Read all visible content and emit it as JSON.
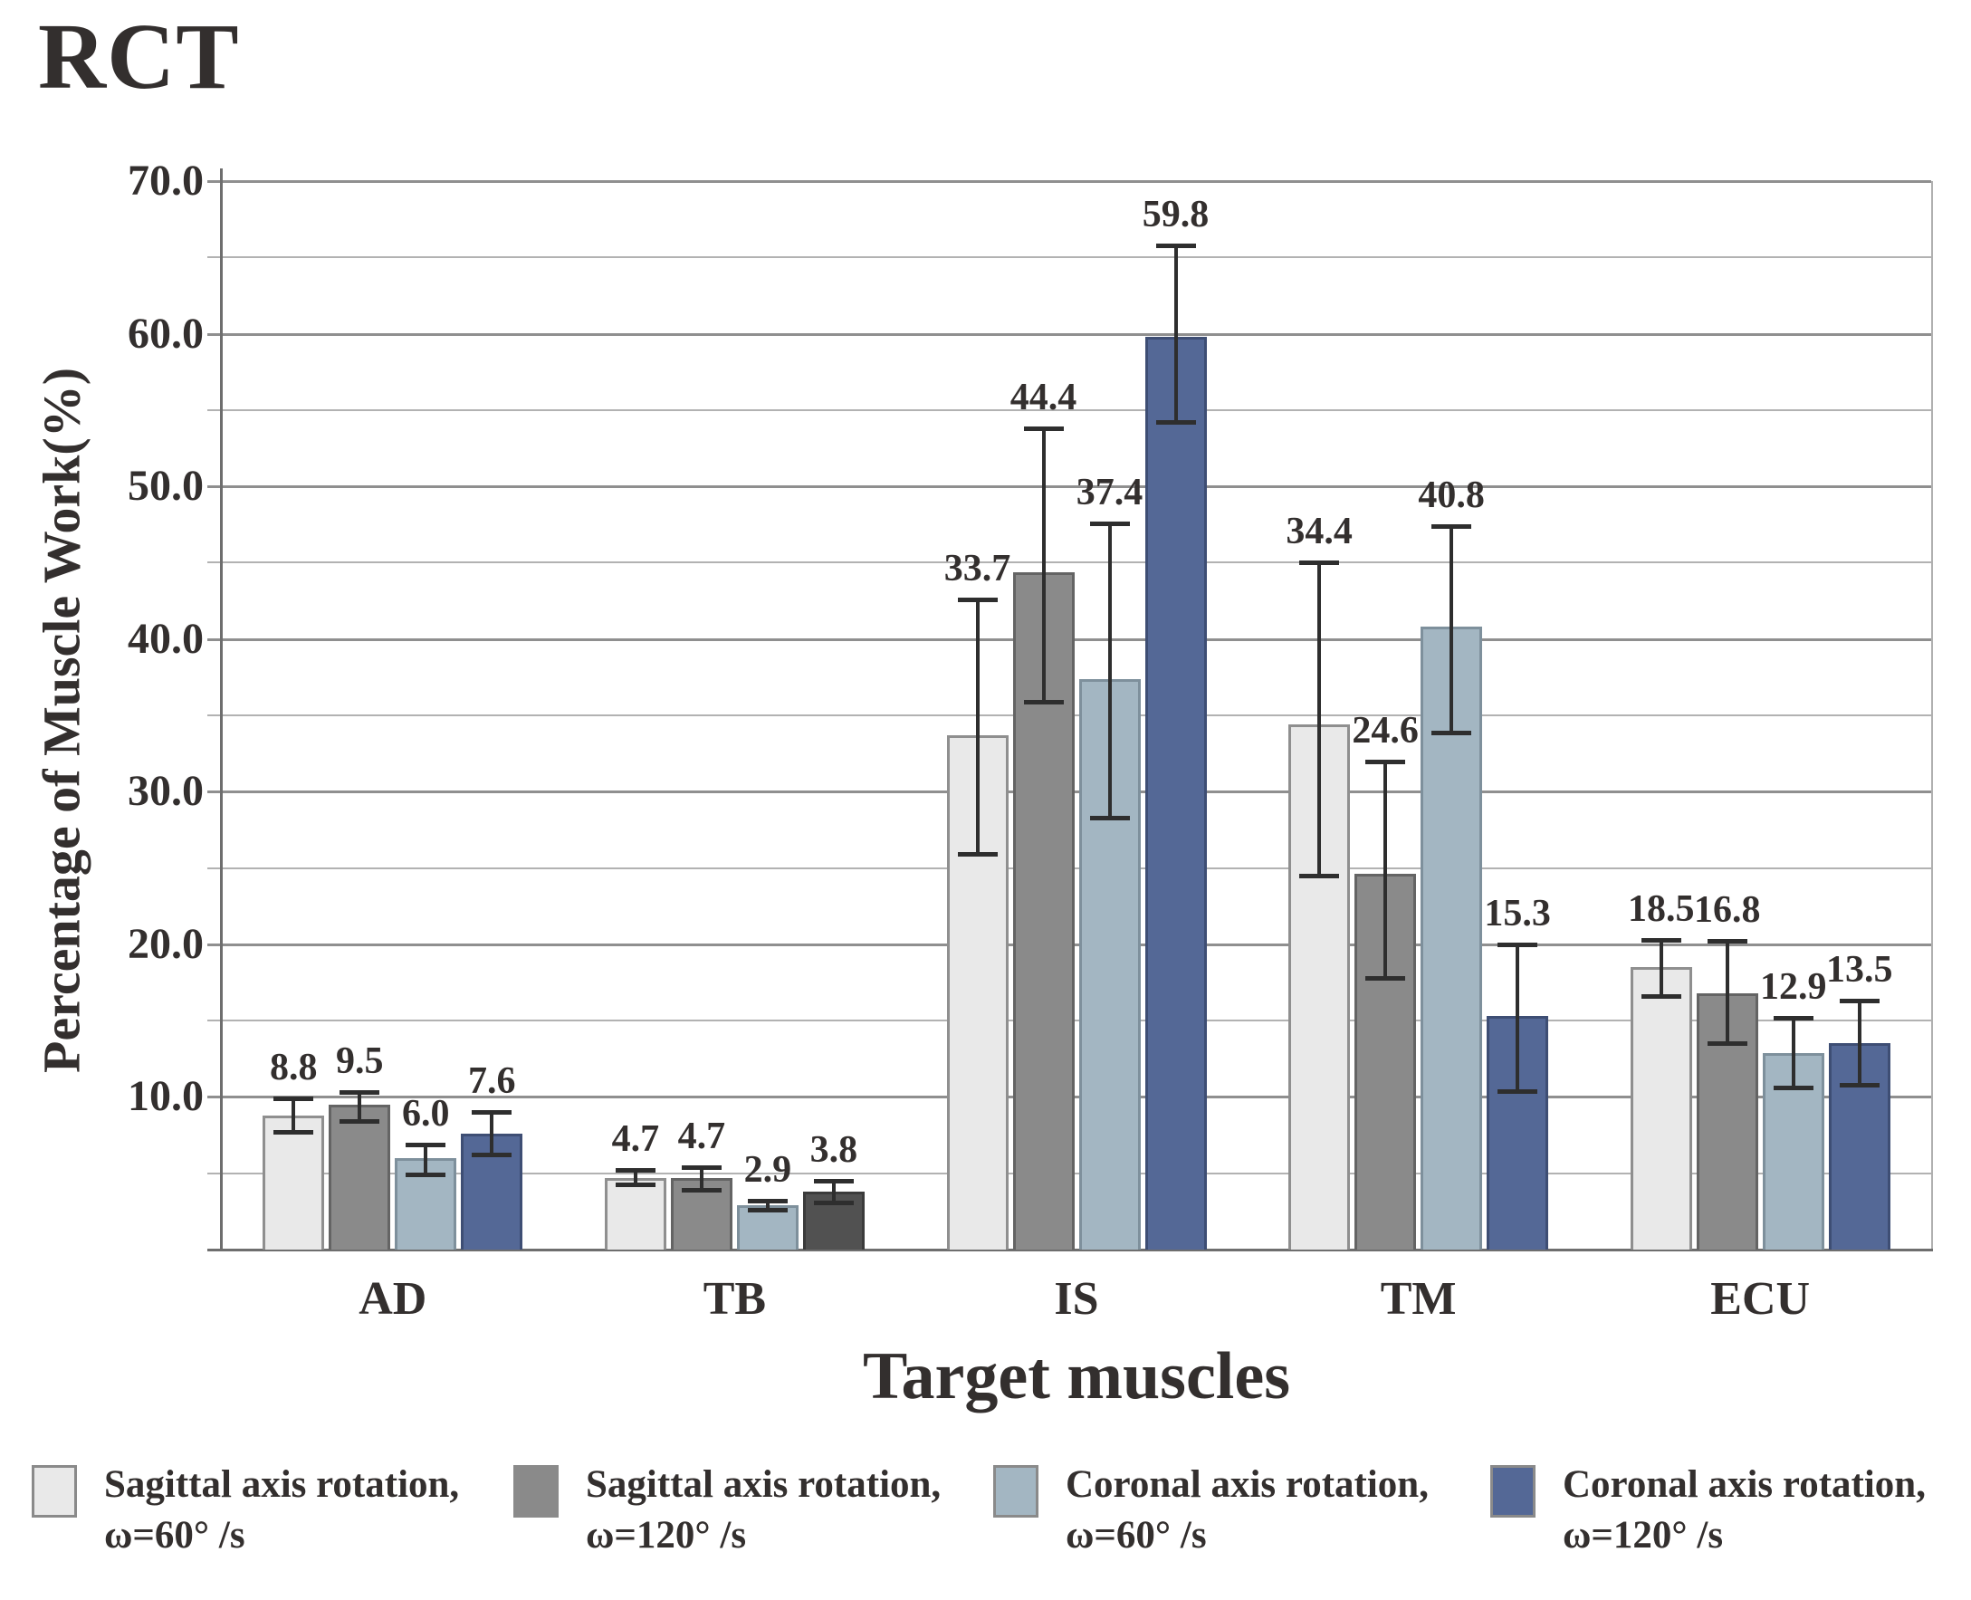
{
  "chart_data": {
    "type": "bar",
    "title": "RCT",
    "xlabel": "Target muscles",
    "ylabel": "Percentage of Muscle Work(%)",
    "categories": [
      "AD",
      "TB",
      "IS",
      "TM",
      "ECU"
    ],
    "ylim": [
      0,
      70
    ],
    "y_major_step": 10,
    "y_minor_step": 5,
    "y_tick_labels": [
      "10.0",
      "20.0",
      "30.0",
      "40.0",
      "50.0",
      "60.0",
      "70.0"
    ],
    "grid": true,
    "legend_position": "bottom",
    "value_label_decimals": 1,
    "series": [
      {
        "name": "Sagittal axis rotation, ω=60° /s",
        "legend_line1": "Sagittal axis rotation,",
        "legend_line2": "ω=60° /s",
        "color": "#e9e9e9",
        "border": "#8f8f8f",
        "values": [
          8.8,
          4.7,
          33.7,
          34.4,
          18.5
        ],
        "err_upper": [
          9.9,
          5.2,
          42.6,
          45.0,
          20.3
        ],
        "err_lower": [
          7.7,
          4.3,
          25.9,
          24.5,
          16.6
        ]
      },
      {
        "name": "Sagittal axis rotation, ω=120° /s",
        "legend_line1": "Sagittal axis rotation,",
        "legend_line2": "ω=120° /s",
        "color": "#8a8a8a",
        "border": "#646464",
        "values": [
          9.5,
          4.7,
          44.4,
          24.6,
          16.8
        ],
        "err_upper": [
          10.3,
          5.4,
          53.8,
          32.0,
          20.2
        ],
        "err_lower": [
          8.4,
          3.9,
          35.9,
          17.8,
          13.5
        ]
      },
      {
        "name": "Coronal axis rotation, ω=60° /s",
        "legend_line1": "Coronal axis  rotation,",
        "legend_line2": "ω=60° /s",
        "color": "#a3b6c2",
        "border": "#7e909c",
        "values": [
          6.0,
          2.9,
          37.4,
          40.8,
          12.9
        ],
        "err_upper": [
          6.9,
          3.2,
          47.6,
          47.4,
          15.2
        ],
        "err_lower": [
          4.9,
          2.6,
          28.3,
          33.9,
          10.6
        ]
      },
      {
        "name": "Coronal axis rotation, ω=120° /s",
        "legend_line1": "Coronal axis  rotation,",
        "legend_line2": "ω=120° /s",
        "color": "#546896",
        "border": "#3e4e74",
        "values": [
          7.6,
          3.8,
          59.8,
          15.3,
          13.5
        ],
        "err_upper": [
          9.0,
          4.5,
          65.8,
          20.0,
          16.3
        ],
        "err_lower": [
          6.2,
          3.1,
          54.2,
          10.4,
          10.8
        ]
      }
    ],
    "bar_color_overrides": [
      {
        "series_index": 3,
        "category": "TB",
        "color": "#515151",
        "border": "#3b3b3b"
      }
    ],
    "colors": {
      "background": "#ffffff",
      "text": "#332f2e",
      "grid_major": "#8f8f8f",
      "grid_minor": "#b2b2b2",
      "axis": "#6e6e6e",
      "error_bar": "#2e2e2e"
    }
  }
}
